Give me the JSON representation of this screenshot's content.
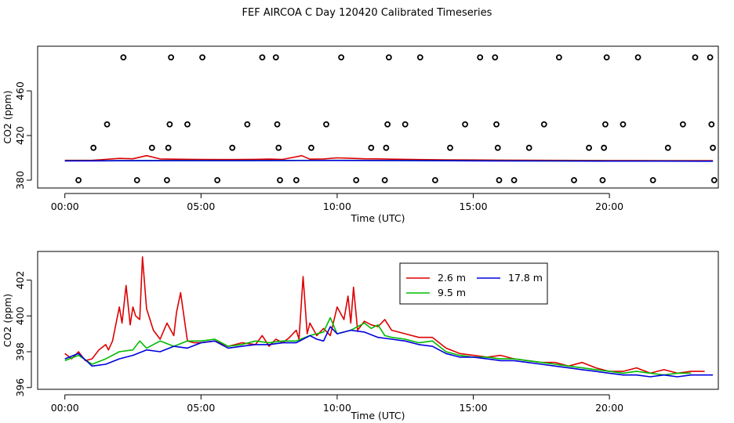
{
  "title": "FEF AIRCOA C  Day 120420  Calibrated Timeseries",
  "chart_data": [
    {
      "type": "line",
      "xlabel": "Time (UTC)",
      "ylabel": "CO2 (ppm)",
      "x_tick_labels": [
        "00:00",
        "05:00",
        "10:00",
        "15:00",
        "20:00"
      ],
      "x_ticks": [
        0,
        5,
        10,
        15,
        20
      ],
      "xlim": [
        -1,
        24
      ],
      "y_tick_labels": [
        "380",
        "420",
        "460"
      ],
      "y_ticks": [
        380,
        420,
        460
      ],
      "ylim": [
        373,
        500
      ],
      "scatter_points": [
        {
          "x": 0.5,
          "y": 380
        },
        {
          "x": 1.05,
          "y": 409
        },
        {
          "x": 1.55,
          "y": 430
        },
        {
          "x": 2.15,
          "y": 490
        },
        {
          "x": 2.65,
          "y": 380
        },
        {
          "x": 3.2,
          "y": 409
        },
        {
          "x": 3.75,
          "y": 380
        },
        {
          "x": 3.8,
          "y": 409
        },
        {
          "x": 3.85,
          "y": 430
        },
        {
          "x": 3.9,
          "y": 490
        },
        {
          "x": 4.5,
          "y": 430
        },
        {
          "x": 5.05,
          "y": 490
        },
        {
          "x": 5.6,
          "y": 380
        },
        {
          "x": 6.15,
          "y": 409
        },
        {
          "x": 6.7,
          "y": 430
        },
        {
          "x": 7.25,
          "y": 490
        },
        {
          "x": 7.75,
          "y": 490
        },
        {
          "x": 7.8,
          "y": 430
        },
        {
          "x": 7.85,
          "y": 409
        },
        {
          "x": 7.9,
          "y": 380
        },
        {
          "x": 8.5,
          "y": 380
        },
        {
          "x": 9.05,
          "y": 409
        },
        {
          "x": 9.6,
          "y": 430
        },
        {
          "x": 10.15,
          "y": 490
        },
        {
          "x": 10.7,
          "y": 380
        },
        {
          "x": 11.25,
          "y": 409
        },
        {
          "x": 11.75,
          "y": 380
        },
        {
          "x": 11.8,
          "y": 409
        },
        {
          "x": 11.85,
          "y": 430
        },
        {
          "x": 11.9,
          "y": 490
        },
        {
          "x": 12.5,
          "y": 430
        },
        {
          "x": 13.05,
          "y": 490
        },
        {
          "x": 13.6,
          "y": 380
        },
        {
          "x": 14.15,
          "y": 409
        },
        {
          "x": 14.7,
          "y": 430
        },
        {
          "x": 15.25,
          "y": 490
        },
        {
          "x": 15.8,
          "y": 490
        },
        {
          "x": 15.85,
          "y": 430
        },
        {
          "x": 15.9,
          "y": 409
        },
        {
          "x": 15.95,
          "y": 380
        },
        {
          "x": 16.5,
          "y": 380
        },
        {
          "x": 17.05,
          "y": 409
        },
        {
          "x": 17.6,
          "y": 430
        },
        {
          "x": 18.15,
          "y": 490
        },
        {
          "x": 18.7,
          "y": 380
        },
        {
          "x": 19.25,
          "y": 409
        },
        {
          "x": 19.75,
          "y": 380
        },
        {
          "x": 19.8,
          "y": 409
        },
        {
          "x": 19.85,
          "y": 430
        },
        {
          "x": 19.9,
          "y": 490
        },
        {
          "x": 20.5,
          "y": 430
        },
        {
          "x": 21.05,
          "y": 490
        },
        {
          "x": 21.6,
          "y": 380
        },
        {
          "x": 22.15,
          "y": 409
        },
        {
          "x": 22.7,
          "y": 430
        },
        {
          "x": 23.15,
          "y": 490
        },
        {
          "x": 23.7,
          "y": 490
        },
        {
          "x": 23.75,
          "y": 430
        },
        {
          "x": 23.8,
          "y": 409
        },
        {
          "x": 23.85,
          "y": 380
        }
      ],
      "series": [
        {
          "name": "2.6 m",
          "color": "#dd0000",
          "x": [
            0,
            1,
            2,
            2.5,
            3,
            3.5,
            4,
            5,
            6,
            7,
            7.5,
            8,
            8.7,
            9,
            9.5,
            10,
            10.5,
            11,
            11.5,
            12,
            13,
            14,
            15,
            16,
            17,
            18,
            19,
            20,
            21,
            22,
            23,
            23.8
          ],
          "values": [
            397.8,
            397.8,
            399.5,
            399.2,
            402,
            399,
            398.8,
            398.6,
            398.5,
            398.7,
            398.9,
            398.6,
            402,
            398.8,
            399,
            400,
            399.6,
            399.2,
            399.1,
            398.8,
            398.5,
            398.2,
            398.1,
            398,
            397.9,
            397.8,
            397.7,
            397.6,
            397.6,
            397.5,
            397.5,
            397.5
          ]
        },
        {
          "name": "9.5 m",
          "color": "#00bb00",
          "x": [
            0,
            2,
            4,
            6,
            8,
            10,
            12,
            14,
            16,
            18,
            20,
            22,
            23.8
          ],
          "values": [
            397.4,
            397.5,
            397.6,
            397.6,
            397.7,
            397.8,
            397.7,
            397.5,
            397.4,
            397.3,
            397.2,
            397.2,
            397.1
          ]
        },
        {
          "name": "17.8 m",
          "color": "#0000dd",
          "x": [
            0,
            2,
            4,
            6,
            8,
            10,
            12,
            14,
            16,
            18,
            20,
            22,
            23.8
          ],
          "values": [
            397.3,
            397.4,
            397.5,
            397.5,
            397.6,
            397.7,
            397.6,
            397.4,
            397.3,
            397.2,
            397.1,
            397.1,
            397.0
          ]
        }
      ]
    },
    {
      "type": "line",
      "xlabel": "Time (UTC)",
      "ylabel": "CO2 (ppm)",
      "x_tick_labels": [
        "00:00",
        "05:00",
        "10:00",
        "15:00",
        "20:00"
      ],
      "x_ticks": [
        0,
        5,
        10,
        15,
        20
      ],
      "xlim": [
        -1,
        24
      ],
      "y_tick_labels": [
        "396",
        "398",
        "400",
        "402"
      ],
      "y_ticks": [
        396,
        398,
        400,
        402
      ],
      "ylim": [
        395.9,
        403.6
      ],
      "legend": {
        "position": "top-center",
        "entries": [
          "2.6 m",
          "17.8 m",
          "9.5 m"
        ]
      },
      "series": [
        {
          "name": "2.6 m",
          "color": "#dd0000",
          "x": [
            0,
            0.25,
            0.5,
            0.75,
            1,
            1.25,
            1.5,
            1.6,
            1.75,
            2,
            2.1,
            2.25,
            2.4,
            2.5,
            2.6,
            2.75,
            2.85,
            3,
            3.25,
            3.5,
            3.75,
            4,
            4.1,
            4.25,
            4.5,
            4.75,
            5,
            5.5,
            6,
            6.5,
            7,
            7.25,
            7.5,
            7.75,
            8,
            8.25,
            8.5,
            8.6,
            8.75,
            8.9,
            9,
            9.25,
            9.5,
            9.75,
            10,
            10.25,
            10.4,
            10.5,
            10.6,
            10.75,
            11,
            11.25,
            11.5,
            11.75,
            12,
            12.5,
            13,
            13.5,
            14,
            14.5,
            15,
            15.5,
            16,
            16.5,
            17,
            17.5,
            18,
            18.5,
            19,
            19.5,
            20,
            20.5,
            21,
            21.5,
            22,
            22.5,
            23,
            23.5
          ],
          "values": [
            397.9,
            397.6,
            398,
            397.5,
            397.6,
            398.1,
            398.4,
            398.1,
            398.6,
            400.5,
            399.6,
            401.7,
            399.5,
            400.5,
            400,
            399.8,
            403.3,
            400.4,
            399.2,
            398.7,
            399.6,
            398.9,
            400.2,
            401.3,
            398.6,
            398.5,
            398.5,
            398.6,
            398.3,
            398.5,
            398.4,
            398.9,
            398.3,
            398.7,
            398.5,
            398.8,
            399.2,
            398.7,
            402.2,
            399,
            399.6,
            398.9,
            399.3,
            398.9,
            400.5,
            399.8,
            401.1,
            399.6,
            401.6,
            399.2,
            399.7,
            399.5,
            399.4,
            399.8,
            399.2,
            399,
            398.8,
            398.8,
            398.2,
            397.9,
            397.8,
            397.7,
            397.8,
            397.6,
            397.5,
            397.4,
            397.4,
            397.2,
            397.4,
            397.1,
            396.9,
            396.9,
            397.1,
            396.8,
            397.0,
            396.8,
            396.9,
            396.9
          ]
        },
        {
          "name": "9.5 m",
          "color": "#00bb00",
          "x": [
            0,
            0.5,
            1,
            1.5,
            2,
            2.5,
            2.75,
            3,
            3.5,
            4,
            4.5,
            5,
            5.5,
            6,
            6.5,
            7,
            7.5,
            8,
            8.5,
            9,
            9.5,
            9.75,
            10,
            10.5,
            11,
            11.25,
            11.5,
            11.75,
            12,
            12.5,
            13,
            13.5,
            14,
            14.5,
            15,
            15.5,
            16,
            16.5,
            17,
            17.5,
            18,
            18.5,
            19,
            19.5,
            20,
            20.5,
            21,
            21.5,
            22,
            22.5,
            23
          ],
          "values": [
            397.5,
            397.8,
            397.3,
            397.6,
            398,
            398.1,
            398.6,
            398.2,
            398.6,
            398.3,
            398.6,
            398.6,
            398.7,
            398.3,
            398.4,
            398.6,
            398.5,
            398.6,
            398.6,
            398.9,
            399.1,
            399.9,
            399,
            399.2,
            399.6,
            399.3,
            399.5,
            398.9,
            398.8,
            398.7,
            398.5,
            398.6,
            398,
            397.8,
            397.7,
            397.7,
            397.6,
            397.6,
            397.5,
            397.4,
            397.3,
            397.2,
            397.1,
            397.0,
            396.9,
            396.8,
            396.9,
            396.8,
            396.7,
            396.8,
            396.8
          ]
        },
        {
          "name": "17.8 m",
          "color": "#0000dd",
          "x": [
            0,
            0.5,
            1,
            1.5,
            2,
            2.5,
            3,
            3.5,
            4,
            4.5,
            5,
            5.5,
            6,
            6.5,
            7,
            7.5,
            8,
            8.5,
            9,
            9.25,
            9.5,
            9.75,
            10,
            10.5,
            11,
            11.5,
            12,
            12.5,
            13,
            13.5,
            14,
            14.5,
            15,
            15.5,
            16,
            16.5,
            17,
            17.5,
            18,
            18.5,
            19,
            19.5,
            20,
            20.5,
            21,
            21.5,
            22,
            22.5,
            23,
            23.8
          ],
          "values": [
            397.6,
            397.9,
            397.2,
            397.3,
            397.6,
            397.8,
            398.1,
            398,
            398.3,
            398.2,
            398.5,
            398.6,
            398.2,
            398.3,
            398.4,
            398.4,
            398.5,
            398.5,
            398.9,
            398.7,
            398.6,
            399.4,
            399.0,
            399.2,
            399.1,
            398.8,
            398.7,
            398.6,
            398.4,
            398.3,
            397.9,
            397.7,
            397.7,
            397.6,
            397.5,
            397.5,
            397.4,
            397.3,
            397.2,
            397.1,
            397.0,
            396.9,
            396.8,
            396.7,
            396.7,
            396.6,
            396.7,
            396.6,
            396.7,
            396.7
          ]
        }
      ]
    }
  ]
}
